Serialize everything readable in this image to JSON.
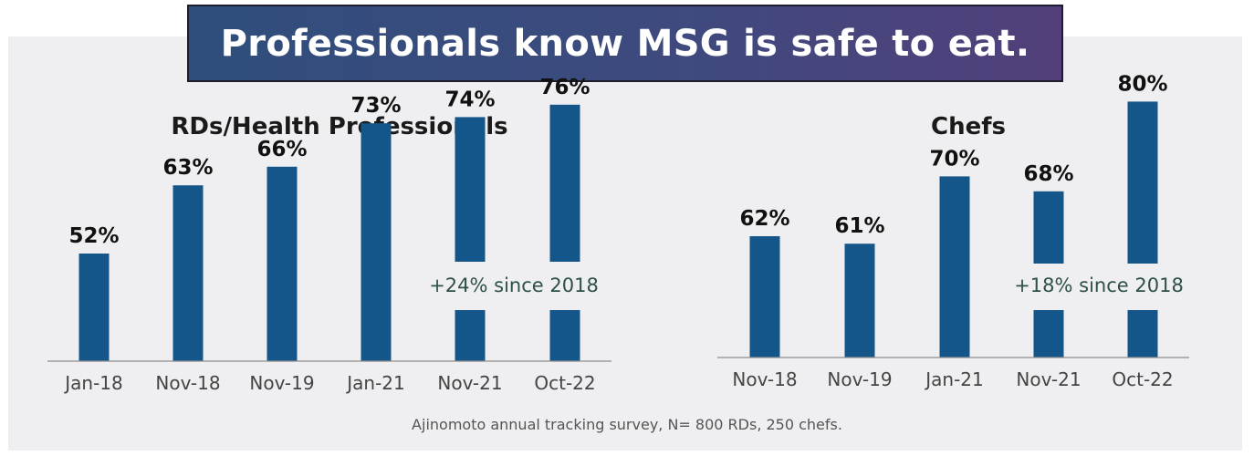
{
  "banner": {
    "title": "Professionals know MSG is safe to eat."
  },
  "chart_data": [
    {
      "type": "bar",
      "title": "RDs/Health Professionals",
      "categories": [
        "Jan-18",
        "Nov-18",
        "Nov-19",
        "Jan-21",
        "Nov-21",
        "Oct-22"
      ],
      "values": [
        52,
        63,
        66,
        73,
        74,
        76
      ],
      "value_labels": [
        "52%",
        "63%",
        "66%",
        "73%",
        "74%",
        "76%"
      ],
      "annotation": "+24% since 2018",
      "ylim": [
        0,
        100
      ],
      "grid": false,
      "color": "#145689"
    },
    {
      "type": "bar",
      "title": "Chefs",
      "categories": [
        "Nov-18",
        "Nov-19",
        "Jan-21",
        "Nov-21",
        "Oct-22"
      ],
      "values": [
        62,
        61,
        70,
        68,
        80
      ],
      "value_labels": [
        "62%",
        "61%",
        "70%",
        "68%",
        "80%"
      ],
      "annotation": "+18% since 2018",
      "ylim": [
        0,
        100
      ],
      "grid": false,
      "color": "#145689"
    }
  ],
  "footer": {
    "source": "Ajinomoto annual tracking survey, N= 800 RDs, 250 chefs."
  }
}
